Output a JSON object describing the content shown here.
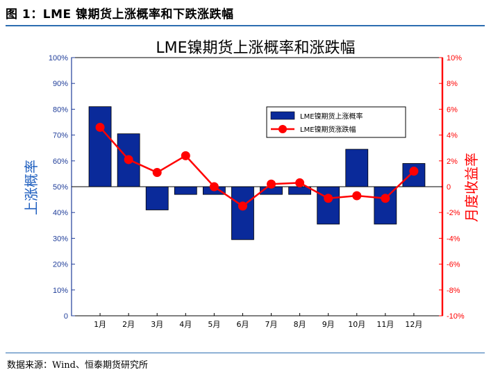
{
  "figure": {
    "caption": "图 1：LME 镍期货上涨概率和下跌涨跌幅",
    "source": "数据来源：Wind、恒泰期货研究所"
  },
  "chart_data": {
    "type": "bar+line",
    "title": "LME镍期货上涨概率和涨跌幅",
    "categories": [
      "1月",
      "2月",
      "3月",
      "4月",
      "5月",
      "6月",
      "7月",
      "8月",
      "9月",
      "10月",
      "11月",
      "12月"
    ],
    "y_left": {
      "label": "上涨概率",
      "range": [
        0,
        100
      ],
      "baseline": 50,
      "ticks": [
        "0",
        "10%",
        "20%",
        "30%",
        "40%",
        "50%",
        "60%",
        "70%",
        "80%",
        "90%",
        "100%"
      ]
    },
    "y_right": {
      "label": "月度收益率",
      "range": [
        -10,
        10
      ],
      "ticks": [
        "-10%",
        "-8%",
        "-6%",
        "-4%",
        "-2%",
        "0",
        "2%",
        "4%",
        "6%",
        "8%",
        "10%"
      ]
    },
    "series": [
      {
        "name": "LME镍期货上涨概率",
        "kind": "bar",
        "axis": "left",
        "color": "#0a2a9a",
        "values": [
          81,
          70.5,
          41,
          47,
          47,
          29.5,
          47,
          47,
          35.5,
          64.5,
          35.5,
          59
        ]
      },
      {
        "name": "LME镍期货涨跌幅",
        "kind": "line",
        "axis": "right",
        "color": "#ff0000",
        "values": [
          4.6,
          2.1,
          1.1,
          2.4,
          0.0,
          -1.5,
          0.2,
          0.3,
          -0.9,
          -0.7,
          -0.9,
          1.2
        ]
      }
    ],
    "legend_position": "top-right",
    "grid": false
  }
}
